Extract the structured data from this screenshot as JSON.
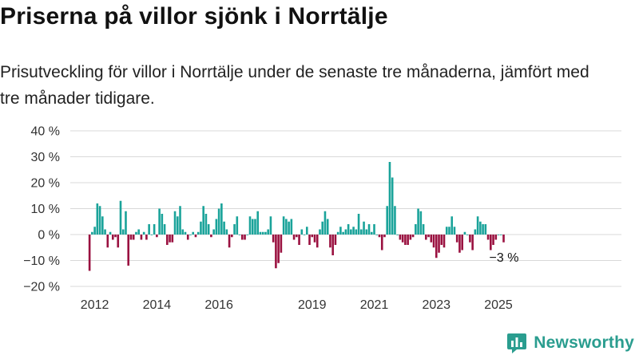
{
  "header": {
    "title": "Priserna på villor sjönk i Norrtälje",
    "subtitle": "Prisutveckling för villor i Norrtälje under de senaste tre månaderna, jämfört med tre månader tidigare."
  },
  "brand": {
    "name": "Newsworthy",
    "icon": "newsworthy-logo-icon"
  },
  "colors": {
    "positive": "#1aa39a",
    "negative": "#9a1140",
    "grid": "#d9d9d9",
    "brand": "#2a9d8f"
  },
  "chart_data": {
    "type": "bar",
    "title": "",
    "xlabel": "",
    "ylabel": "",
    "ylim": [
      -20,
      40
    ],
    "y_ticks": [
      40,
      30,
      20,
      10,
      0,
      -10,
      -20
    ],
    "y_tick_labels": [
      "40 %",
      "30 %",
      "20 %",
      "10 %",
      "0 %",
      "−10 %",
      "−20 %"
    ],
    "x_ticks": [
      "2012",
      "2014",
      "2016",
      "2019",
      "2021",
      "2023",
      "2025"
    ],
    "grid": "horizontal",
    "start": "2011-11",
    "values": [
      -14,
      1,
      3,
      12,
      11,
      7,
      2,
      -5,
      1,
      -2,
      -1,
      -5,
      13,
      2,
      9,
      -12,
      -2,
      -2,
      1,
      2,
      -2,
      1,
      -2,
      4,
      0,
      4,
      -1,
      10,
      8,
      4,
      -4,
      -3,
      -3,
      9,
      7,
      11,
      2,
      1,
      -2,
      0,
      1,
      -1,
      1,
      5,
      11,
      8,
      4,
      -1,
      2,
      6,
      10,
      12,
      5,
      2,
      -5,
      -1,
      4,
      7,
      0,
      -2,
      -2,
      0,
      7,
      6,
      6,
      9,
      1,
      1,
      1,
      2,
      7,
      -3,
      -13,
      -11,
      -7,
      7,
      6,
      5,
      6,
      -2,
      -1,
      -4,
      2,
      0,
      3,
      -4,
      -1,
      -3,
      -5,
      2,
      5,
      9,
      6,
      -5,
      -8,
      -4,
      1,
      3,
      1,
      2,
      4,
      2,
      3,
      2,
      8,
      2,
      5,
      2,
      4,
      1,
      4,
      0,
      -1,
      -6,
      -1,
      11,
      28,
      22,
      11,
      0,
      -2,
      -3,
      -4,
      -4,
      -2,
      -1,
      4,
      10,
      9,
      4,
      -2,
      -1,
      -3,
      -5,
      -9,
      -7,
      -4,
      -5,
      3,
      3,
      7,
      3,
      -3,
      -7,
      -6,
      1,
      0,
      -3,
      -6,
      2,
      7,
      5,
      4,
      4,
      -2,
      -6,
      -4,
      -2,
      0,
      0,
      -3
    ],
    "annotation": {
      "text": "−3 %"
    }
  }
}
